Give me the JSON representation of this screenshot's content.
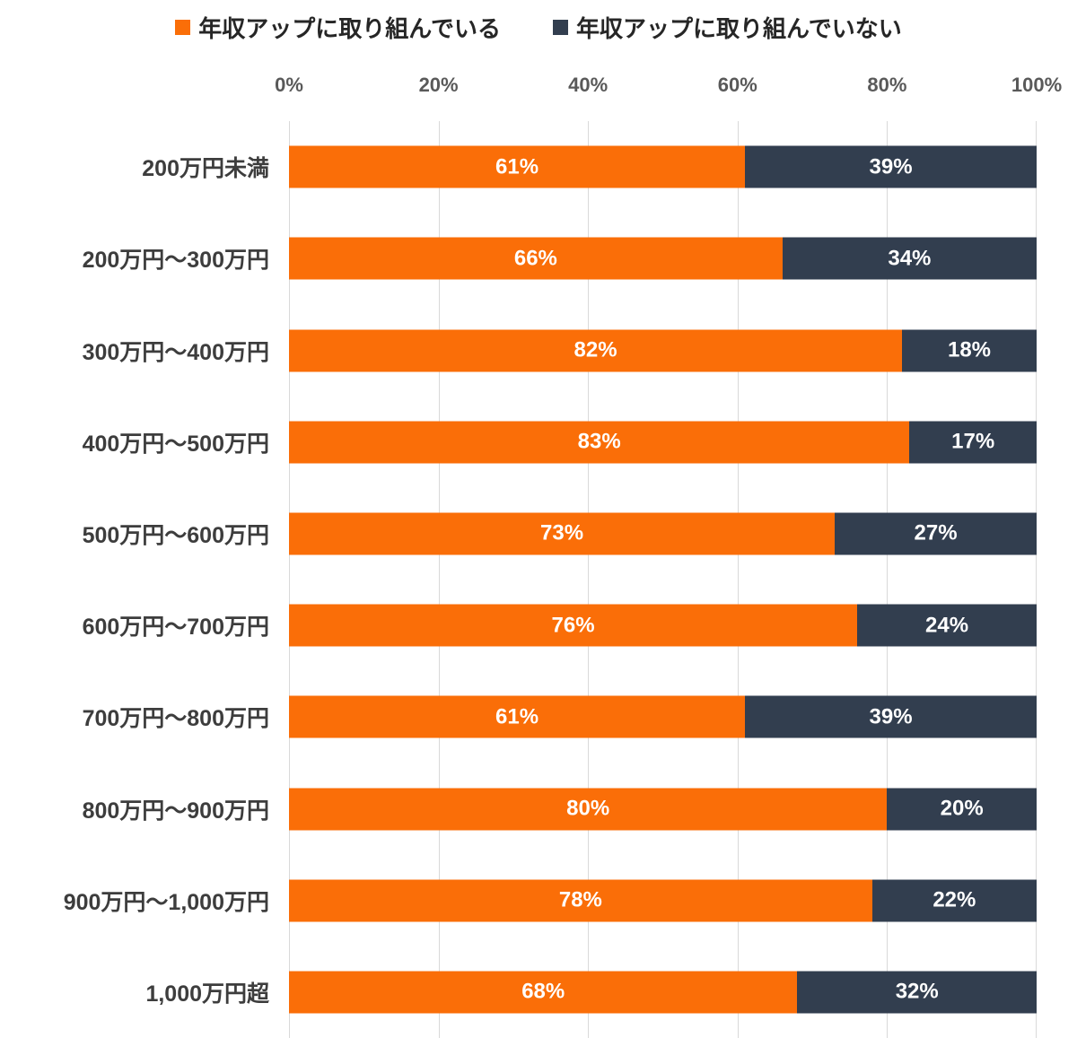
{
  "legend": {
    "position": "top",
    "items": [
      {
        "label": "年収アップに取り組んでいる",
        "color": "#FA6E08"
      },
      {
        "label": "年収アップに取り組んでいない",
        "color": "#323E4F"
      }
    ]
  },
  "axis": {
    "position": "top",
    "ticks": [
      "0%",
      "20%",
      "40%",
      "60%",
      "80%",
      "100%"
    ],
    "tick_color": "#595959"
  },
  "chart_data": {
    "type": "bar",
    "orientation": "horizontal",
    "stacked": true,
    "title": "",
    "xlabel": "",
    "ylabel": "",
    "xlim": [
      0,
      100
    ],
    "grid": "vertical gridlines every 20%",
    "gridline_color": "#d9d9d9",
    "legend_position": "top",
    "value_suffix": "%",
    "categories": [
      "200万円未満",
      "200万円～300万円",
      "300万円～400万円",
      "400万円～500万円",
      "500万円～600万円",
      "600万円～700万円",
      "700万円～800万円",
      "800万円～900万円",
      "900万円～1,000万円",
      "1,000万円超"
    ],
    "series": [
      {
        "name": "年収アップに取り組んでいる",
        "color": "#FA6E08",
        "values": [
          61,
          66,
          82,
          83,
          73,
          76,
          61,
          80,
          78,
          68
        ]
      },
      {
        "name": "年収アップに取り組んでいない",
        "color": "#323E4F",
        "values": [
          39,
          34,
          18,
          17,
          27,
          24,
          39,
          20,
          22,
          32
        ]
      }
    ]
  }
}
